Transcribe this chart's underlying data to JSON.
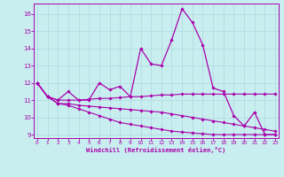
{
  "xlabel": "Windchill (Refroidissement éolien,°C)",
  "bg_color": "#c8eef0",
  "line_color": "#aa00aa",
  "grid_color": "#b0d8e0",
  "xlim": [
    0,
    23
  ],
  "ylim": [
    9,
    16.5
  ],
  "yticks": [
    9,
    10,
    11,
    12,
    13,
    14,
    15,
    16
  ],
  "xticks": [
    0,
    1,
    2,
    3,
    4,
    5,
    6,
    7,
    8,
    9,
    10,
    11,
    12,
    13,
    14,
    15,
    16,
    17,
    18,
    19,
    20,
    21,
    22,
    23
  ],
  "line1_y": [
    12.0,
    11.2,
    11.0,
    11.5,
    11.0,
    11.0,
    12.0,
    11.6,
    11.8,
    11.2,
    14.0,
    13.1,
    13.0,
    14.5,
    16.3,
    15.5,
    14.2,
    11.7,
    11.5,
    10.1,
    9.5,
    10.3,
    9.0,
    9.0
  ],
  "line2_y": [
    12.0,
    11.2,
    11.0,
    11.0,
    11.0,
    11.05,
    11.1,
    11.1,
    11.15,
    11.2,
    11.2,
    11.25,
    11.3,
    11.3,
    11.35,
    11.35,
    11.35,
    11.35,
    11.35,
    11.35,
    11.35,
    11.35,
    11.35,
    11.35
  ],
  "line3_y": [
    12.0,
    11.2,
    10.8,
    10.8,
    10.7,
    10.65,
    10.6,
    10.55,
    10.5,
    10.45,
    10.4,
    10.35,
    10.3,
    10.2,
    10.1,
    10.0,
    9.9,
    9.8,
    9.7,
    9.6,
    9.5,
    9.4,
    9.3,
    9.2
  ],
  "line4_y": [
    12.0,
    11.2,
    10.8,
    10.7,
    10.5,
    10.3,
    10.1,
    9.9,
    9.7,
    9.6,
    9.5,
    9.4,
    9.3,
    9.2,
    9.15,
    9.1,
    9.05,
    9.0,
    9.0,
    9.0,
    9.0,
    9.0,
    9.0,
    9.0
  ]
}
